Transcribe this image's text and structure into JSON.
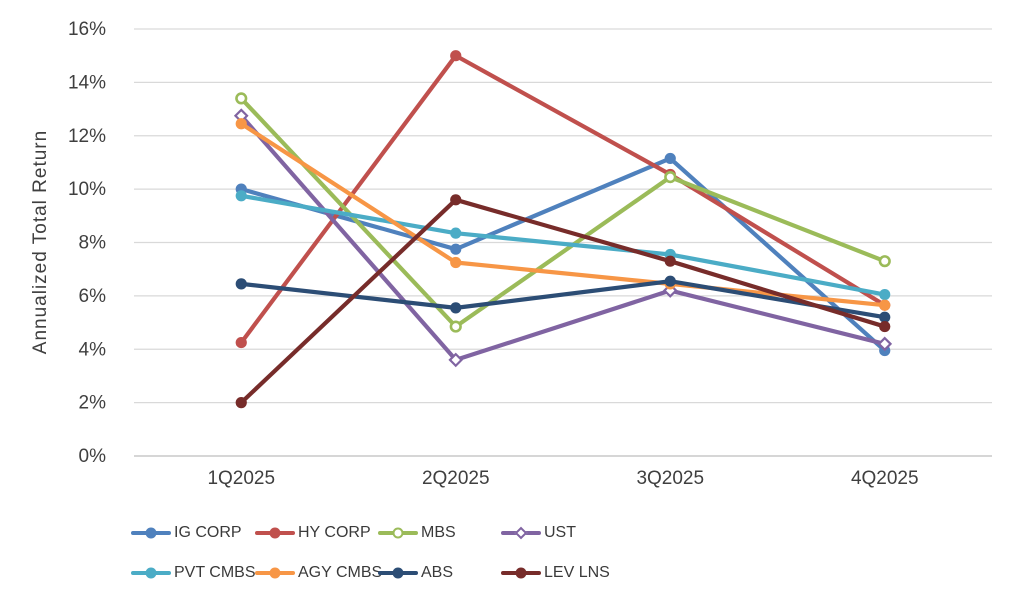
{
  "chart_data": {
    "type": "line",
    "title": "",
    "xlabel": "",
    "ylabel": "Annualized Total Return",
    "categories": [
      "1Q2025",
      "2Q2025",
      "3Q2025",
      "4Q2025"
    ],
    "ylim": [
      0,
      16
    ],
    "ytick_step": 2,
    "ytick_suffix": "%",
    "grid": true,
    "legend_position": "bottom",
    "legend_rows": 2,
    "grid_color": "#d9d9d9",
    "axis_line_color": "#bdbdbd",
    "text_color": "#3f3f3f",
    "series": [
      {
        "name": "IG CORP",
        "color": "#4F81BD",
        "marker": "circle",
        "values": [
          10.0,
          7.75,
          11.15,
          3.95
        ]
      },
      {
        "name": "HY CORP",
        "color": "#C0504D",
        "marker": "circle",
        "values": [
          4.25,
          15.0,
          10.55,
          5.65
        ]
      },
      {
        "name": "MBS",
        "color": "#9BBB59",
        "marker": "open-circle",
        "values": [
          13.4,
          4.85,
          10.45,
          7.3
        ]
      },
      {
        "name": "UST",
        "color": "#8064A2",
        "marker": "open-diamond",
        "values": [
          12.75,
          3.6,
          6.2,
          4.2
        ]
      },
      {
        "name": "PVT CMBS",
        "color": "#4BACC6",
        "marker": "circle",
        "values": [
          9.75,
          8.35,
          7.55,
          6.05
        ]
      },
      {
        "name": "AGY CMBS",
        "color": "#F79646",
        "marker": "circle",
        "values": [
          12.45,
          7.25,
          6.45,
          5.65
        ]
      },
      {
        "name": "ABS",
        "color": "#2C4D75",
        "marker": "circle",
        "values": [
          6.45,
          5.55,
          6.55,
          5.2
        ]
      },
      {
        "name": "LEV LNS",
        "color": "#772C2A",
        "marker": "circle",
        "values": [
          2.0,
          9.6,
          7.3,
          4.85
        ]
      }
    ]
  }
}
